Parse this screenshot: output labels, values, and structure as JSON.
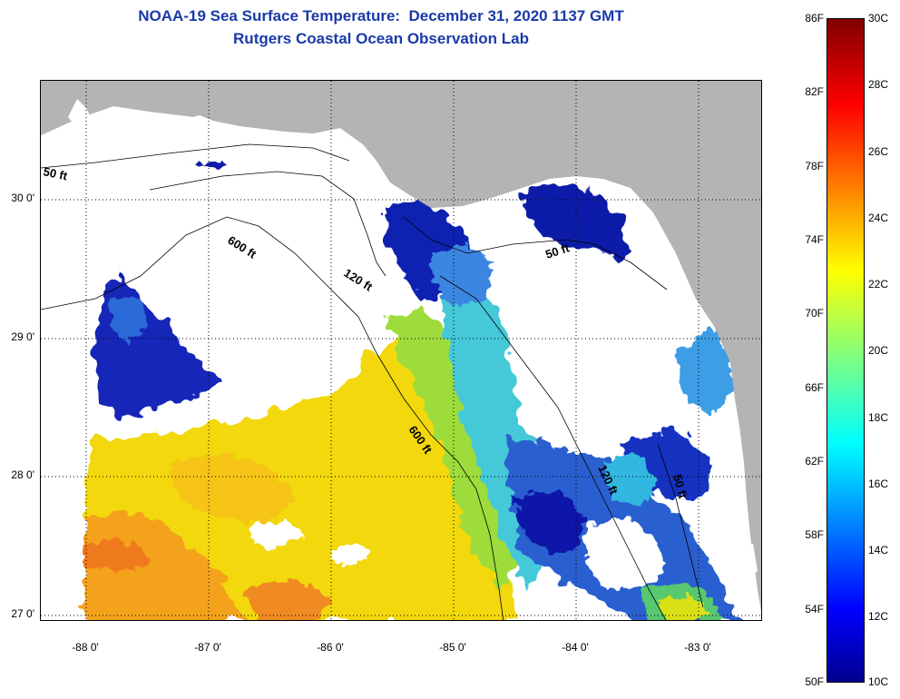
{
  "title": {
    "line1": "NOAA-19 Sea Surface Temperature:  December 31, 2020 1137 GMT",
    "line2": "Rutgers Coastal Ocean Observation Lab"
  },
  "map": {
    "lat_labels": [
      "30 0'",
      "29 0'",
      "28 0'",
      "27 0'"
    ],
    "lat_values": [
      30,
      29,
      28,
      27
    ],
    "lon_labels": [
      "-88 0'",
      "-87 0'",
      "-86 0'",
      "-85 0'",
      "-84 0'",
      "-83 0'"
    ],
    "lon_values": [
      -88,
      -87,
      -86,
      -85,
      -84,
      -83
    ],
    "lat_range": [
      26.98,
      30.87
    ],
    "lon_range": [
      -88.33,
      -82.43
    ],
    "contours": [
      {
        "label": "50 ft"
      },
      {
        "label": "600 ft"
      },
      {
        "label": "120 ft"
      },
      {
        "label": "50 ft"
      },
      {
        "label": "600 ft"
      },
      {
        "label": "120 ft"
      },
      {
        "label": "50 ft"
      }
    ],
    "colors": {
      "land": "#b4b4b4",
      "cloud": "#ffffff",
      "grid": "#000000"
    }
  },
  "colorbar": {
    "f_labels": [
      "86F",
      "82F",
      "78F",
      "74F",
      "70F",
      "66F",
      "62F",
      "58F",
      "54F",
      "50F"
    ],
    "c_labels": [
      "30C",
      "28C",
      "26C",
      "24C",
      "22C",
      "20C",
      "18C",
      "16C",
      "14C",
      "12C",
      "10C"
    ],
    "range_c": [
      10,
      30
    ],
    "range_f": [
      50,
      86
    ],
    "colormap": "jet"
  }
}
